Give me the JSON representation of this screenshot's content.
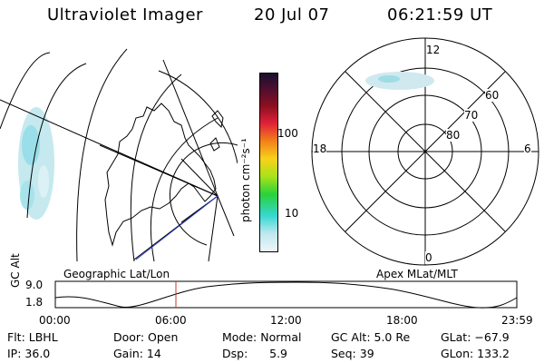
{
  "header": {
    "instrument": "Ultraviolet Imager",
    "date": "20 Jul 07",
    "time": "06:21:59 UT"
  },
  "colorbar": {
    "unit_label": "photon cm⁻²s⁻¹",
    "ticks": [
      "100",
      "10"
    ],
    "colors": [
      "#1a0f2e",
      "#8a0f1f",
      "#e0203a",
      "#f3801a",
      "#f8d21a",
      "#a8e21a",
      "#28d23a",
      "#36d8d2",
      "#dfeaf0"
    ]
  },
  "geo_map": {
    "label": "Geographic Lat/Lon"
  },
  "polar_map": {
    "label": "Apex MLat/MLT",
    "mlt_labels": [
      "12",
      "18",
      "6",
      "0"
    ],
    "lat_labels": [
      "60",
      "70",
      "80"
    ]
  },
  "orbit_plot": {
    "ylabel": "GC Alt",
    "yticks": [
      "9.0",
      "1.8"
    ],
    "xticks": [
      "00:00",
      "06:00",
      "12:00",
      "18:00",
      "23:59"
    ]
  },
  "status": {
    "flt": "Flt: LBHL",
    "ip": "IP: 36.0",
    "door": "Door: Open",
    "gain": "Gain: 14",
    "mode": "Mode: Normal",
    "dsp": "Dsp:      5.9",
    "gcalt": "GC Alt: 5.0 Re",
    "seq": "Seq: 39",
    "glat": "GLat: −67.9",
    "glon": "GLon: 133.2"
  }
}
